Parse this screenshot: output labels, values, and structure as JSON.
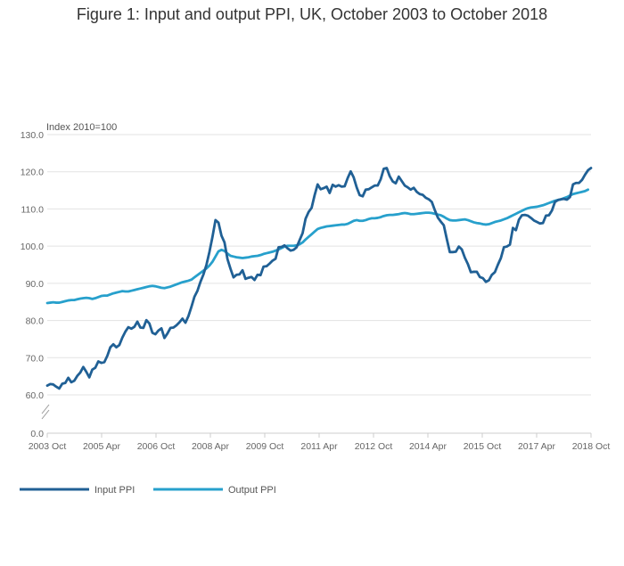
{
  "chart_data": {
    "type": "line",
    "title": "Figure 1: Input and output PPI, UK, October 2003 to October 2018",
    "ylabel": "Index 2010=100",
    "xlabel": "",
    "ylim": [
      60,
      130
    ],
    "yticks": [
      60,
      70,
      80,
      90,
      100,
      110,
      120,
      130
    ],
    "ytick_labels": [
      "60.0",
      "70.0",
      "80.0",
      "90.0",
      "100.0",
      "110.0",
      "120.0",
      "130.0"
    ],
    "axis_zero_label": "0.0",
    "axis_break": true,
    "grid": true,
    "legend_placement": "bottom-left",
    "x_tick_labels": [
      "2003 Oct",
      "2005 Apr",
      "2006 Oct",
      "2008 Apr",
      "2009 Oct",
      "2011 Apr",
      "2012 Oct",
      "2014 Apr",
      "2015 Oct",
      "2017 Apr",
      "2018 Oct"
    ],
    "x_start": "2003 Oct",
    "x_end": "2018 Oct",
    "series": [
      {
        "name": "Input PPI",
        "color": "#206095",
        "values": [
          62.5,
          62.9,
          62.8,
          62.2,
          61.7,
          63.0,
          63.2,
          64.6,
          63.4,
          63.8,
          65.1,
          66.0,
          67.5,
          66.2,
          64.7,
          66.8,
          67.3,
          69.0,
          68.6,
          68.8,
          70.5,
          72.8,
          73.6,
          72.8,
          73.4,
          75.4,
          77.0,
          78.2,
          77.8,
          78.3,
          79.7,
          78.1,
          78.0,
          80.1,
          79.2,
          76.7,
          76.3,
          77.3,
          77.9,
          75.3,
          76.5,
          78.0,
          78.1,
          78.7,
          79.5,
          80.5,
          79.4,
          81.2,
          83.7,
          86.4,
          88.0,
          90.4,
          92.4,
          95.0,
          98.5,
          102.5,
          107.0,
          106.3,
          102.8,
          101.0,
          96.5,
          93.9,
          91.6,
          92.3,
          92.4,
          93.5,
          91.2,
          91.5,
          91.7,
          90.9,
          92.3,
          92.2,
          94.5,
          94.6,
          95.3,
          96.1,
          96.6,
          99.7,
          99.8,
          100.2,
          99.4,
          98.8,
          99.0,
          99.7,
          101.6,
          103.5,
          107.4,
          109.2,
          110.3,
          113.7,
          116.6,
          115.3,
          115.6,
          116.0,
          114.3,
          116.5,
          116.0,
          116.4,
          116.0,
          116.1,
          118.3,
          120.1,
          118.5,
          115.8,
          113.7,
          113.4,
          115.2,
          115.3,
          115.8,
          116.3,
          116.3,
          118.0,
          120.8,
          121.0,
          118.8,
          117.4,
          116.9,
          118.7,
          117.5,
          116.3,
          115.8,
          115.2,
          115.7,
          114.6,
          114.0,
          113.8,
          113.0,
          112.6,
          111.9,
          109.7,
          107.7,
          106.6,
          105.6,
          101.9,
          98.4,
          98.4,
          98.5,
          99.9,
          99.1,
          96.9,
          95.2,
          93.0,
          93.1,
          93.1,
          91.7,
          91.4,
          90.4,
          90.8,
          92.3,
          93.0,
          95.0,
          96.8,
          99.7,
          99.9,
          100.4,
          104.9,
          104.3,
          107.1,
          108.3,
          108.4,
          108.2,
          107.6,
          106.9,
          106.5,
          106.1,
          106.2,
          108.2,
          108.3,
          109.6,
          111.9,
          112.4,
          112.6,
          112.7,
          112.5,
          113.2,
          116.6,
          117.0,
          117.0,
          117.8,
          119.2,
          120.4,
          121.0
        ],
        "values_note": ""
      },
      {
        "name": "Output PPI",
        "color": "#27a0cc",
        "values": [
          84.7,
          84.8,
          84.9,
          84.8,
          84.8,
          85.0,
          85.2,
          85.4,
          85.5,
          85.5,
          85.7,
          85.9,
          86.0,
          86.1,
          86.0,
          85.8,
          86.0,
          86.3,
          86.6,
          86.7,
          86.7,
          87.0,
          87.3,
          87.5,
          87.7,
          87.9,
          87.8,
          87.8,
          88.0,
          88.2,
          88.4,
          88.6,
          88.8,
          89.0,
          89.2,
          89.3,
          89.2,
          89.0,
          88.8,
          88.7,
          88.9,
          89.1,
          89.4,
          89.7,
          90.0,
          90.3,
          90.5,
          90.7,
          91.0,
          91.6,
          92.2,
          92.8,
          93.4,
          94.0,
          94.8,
          95.8,
          97.2,
          98.6,
          99.0,
          98.7,
          98.0,
          97.4,
          97.2,
          97.0,
          96.9,
          96.8,
          96.9,
          97.0,
          97.2,
          97.3,
          97.4,
          97.6,
          97.9,
          98.1,
          98.3,
          98.5,
          98.8,
          99.1,
          99.5,
          99.9,
          100.1,
          100.1,
          100.1,
          100.2,
          100.5,
          101.0,
          101.8,
          102.5,
          103.2,
          103.9,
          104.6,
          104.9,
          105.1,
          105.3,
          105.4,
          105.5,
          105.6,
          105.7,
          105.8,
          105.8,
          106.0,
          106.4,
          106.8,
          107.0,
          106.8,
          106.8,
          107.0,
          107.3,
          107.5,
          107.5,
          107.6,
          107.8,
          108.1,
          108.3,
          108.4,
          108.4,
          108.5,
          108.6,
          108.8,
          108.9,
          108.8,
          108.6,
          108.6,
          108.7,
          108.8,
          108.9,
          109.0,
          109.0,
          108.9,
          108.7,
          108.5,
          108.3,
          107.9,
          107.4,
          107.0,
          106.9,
          106.9,
          107.0,
          107.1,
          107.2,
          107.0,
          106.7,
          106.4,
          106.2,
          106.1,
          105.9,
          105.8,
          105.9,
          106.2,
          106.5,
          106.7,
          106.9,
          107.2,
          107.5,
          107.9,
          108.3,
          108.7,
          109.1,
          109.5,
          109.9,
          110.2,
          110.4,
          110.5,
          110.6,
          110.8,
          111.0,
          111.3,
          111.6,
          111.9,
          112.2,
          112.4,
          112.6,
          112.9,
          113.2,
          113.6,
          114.0,
          114.2,
          114.4,
          114.6,
          114.8,
          115.2
        ]
      }
    ]
  }
}
